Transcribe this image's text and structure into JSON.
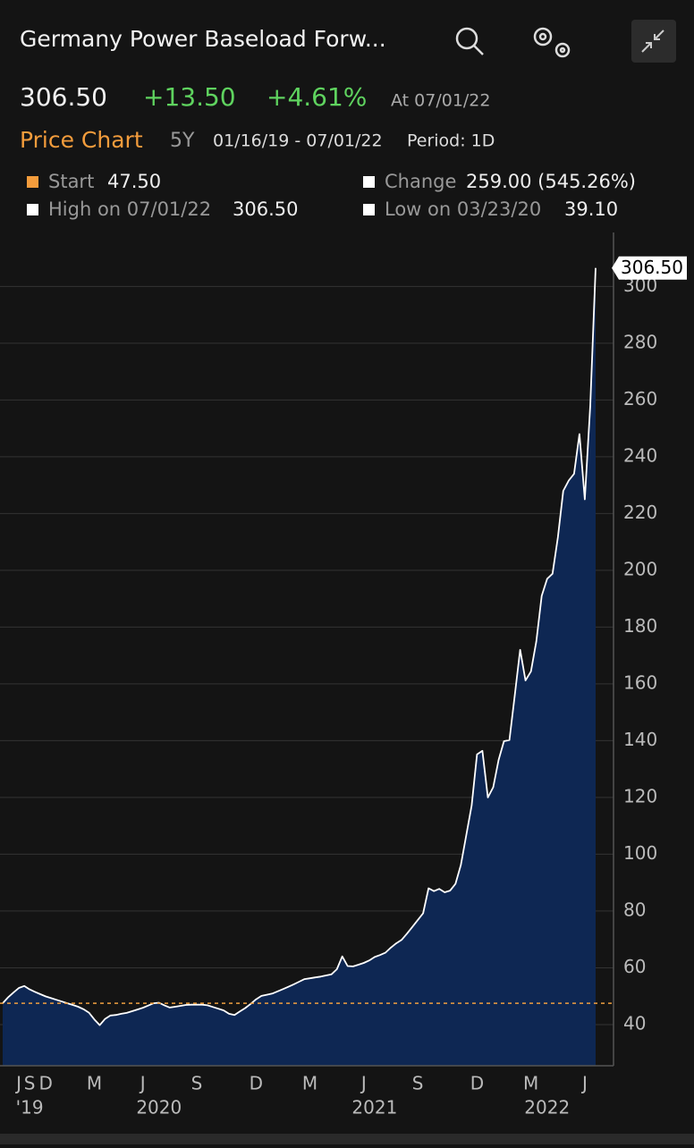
{
  "header": {
    "title": "Germany Power Baseload Forw...",
    "price": "306.50",
    "change": "+13.50",
    "change_pct": "+4.61%",
    "as_of": "At 07/01/22",
    "chart_label": "Price Chart",
    "range": "5Y",
    "dates": "01/16/19 - 07/01/22",
    "period": "Period: 1D",
    "stats": {
      "start_label": "Start",
      "start": "47.50",
      "change_label": "Change",
      "change": "259.00 (545.26%)",
      "high_label": "High on 07/01/22",
      "high": "306.50",
      "low_label": "Low on 03/23/20",
      "low": "39.10"
    }
  },
  "chart_data": {
    "type": "area",
    "categories": [
      null,
      null,
      null,
      "J",
      null,
      "S",
      null,
      null,
      "D",
      null,
      null,
      null,
      null,
      null,
      null,
      null,
      null,
      "M",
      null,
      null,
      null,
      null,
      null,
      null,
      null,
      null,
      "J",
      null,
      null,
      null,
      null,
      null,
      null,
      null,
      null,
      null,
      "S",
      null,
      null,
      null,
      null,
      null,
      null,
      null,
      null,
      null,
      null,
      "D",
      null,
      null,
      null,
      null,
      null,
      null,
      null,
      null,
      null,
      "M",
      null,
      null,
      null,
      null,
      null,
      null,
      null,
      null,
      null,
      "J",
      null,
      null,
      null,
      null,
      null,
      null,
      null,
      null,
      null,
      "S",
      null,
      null,
      null,
      null,
      null,
      null,
      null,
      null,
      null,
      null,
      "D",
      null,
      null,
      null,
      null,
      null,
      null,
      null,
      null,
      null,
      "M",
      null,
      null,
      null,
      null,
      null,
      null,
      null,
      null,
      null,
      "J",
      null,
      null
    ],
    "years": [
      null,
      null,
      null,
      null,
      null,
      "'19",
      null,
      null,
      null,
      null,
      null,
      null,
      null,
      null,
      null,
      null,
      null,
      null,
      null,
      null,
      null,
      null,
      null,
      null,
      null,
      null,
      null,
      null,
      null,
      "2020",
      null,
      null,
      null,
      null,
      null,
      null,
      null,
      null,
      null,
      null,
      null,
      null,
      null,
      null,
      null,
      null,
      null,
      null,
      null,
      null,
      null,
      null,
      null,
      null,
      null,
      null,
      null,
      null,
      null,
      null,
      null,
      null,
      null,
      null,
      null,
      null,
      null,
      null,
      null,
      "2021",
      null,
      null,
      null,
      null,
      null,
      null,
      null,
      null,
      null,
      null,
      null,
      null,
      null,
      null,
      null,
      null,
      null,
      null,
      null,
      null,
      null,
      null,
      null,
      null,
      null,
      null,
      null,
      null,
      null,
      null,
      null,
      "2022",
      null,
      null,
      null,
      null,
      null,
      null,
      null,
      null,
      null
    ],
    "values": [
      47.5,
      49.6,
      51.3,
      52.9,
      53.6,
      52.4,
      51.5,
      50.7,
      49.9,
      49.3,
      48.7,
      48.1,
      47.5,
      46.9,
      46.3,
      45.4,
      44.2,
      41.8,
      39.8,
      42.0,
      43.2,
      43.4,
      43.8,
      44.1,
      44.7,
      45.3,
      45.9,
      46.7,
      47.5,
      47.7,
      46.8,
      46.0,
      46.3,
      46.6,
      46.9,
      47.0,
      47.0,
      47.0,
      46.8,
      46.2,
      45.6,
      45.0,
      43.8,
      43.4,
      44.6,
      45.8,
      47.3,
      48.9,
      50.1,
      50.5,
      50.9,
      51.7,
      52.5,
      53.3,
      54.2,
      55.1,
      56.0,
      56.3,
      56.6,
      56.9,
      57.3,
      57.7,
      59.5,
      64.0,
      60.6,
      60.5,
      61.1,
      61.7,
      62.6,
      63.8,
      64.5,
      65.3,
      67.1,
      68.6,
      69.8,
      72.0,
      74.4,
      76.8,
      79.2,
      88.0,
      87.0,
      87.8,
      86.6,
      87.2,
      89.6,
      96.2,
      106.6,
      117.2,
      135.2,
      136.4,
      120.0,
      123.6,
      133.2,
      139.8,
      140.2,
      156.0,
      172.0,
      161.2,
      164.4,
      175.0,
      191.0,
      197.0,
      198.8,
      211.6,
      228.0,
      231.6,
      234.0,
      248.0,
      225.0,
      258.0,
      306.5
    ],
    "last_label": {
      "value": 306.5,
      "label": "306.50"
    },
    "baseline": 47.5,
    "line_color": "#ffffff",
    "fill_color": "#0e2753",
    "baseline_color": "#f0a040",
    "ylim": [
      25.5,
      319
    ],
    "yticks": [
      40,
      60,
      80,
      100,
      120,
      140,
      160,
      180,
      200,
      220,
      240,
      260,
      280,
      300
    ],
    "grid": true
  }
}
